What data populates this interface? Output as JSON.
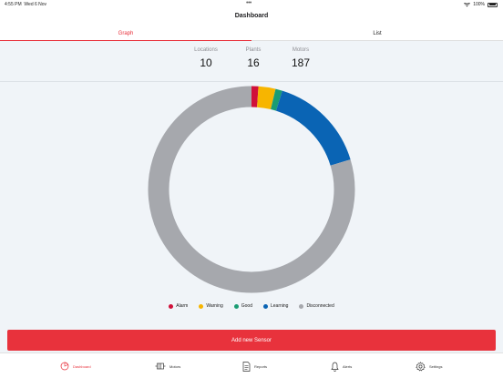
{
  "status_bar": {
    "time": "4:55 PM",
    "date": "Wed 6 Nov",
    "battery": "100%"
  },
  "nav": {
    "title": "Dashboard"
  },
  "tabs": [
    {
      "label": "Graph",
      "active": true
    },
    {
      "label": "List",
      "active": false
    }
  ],
  "stats": [
    {
      "label": "Locations",
      "value": "10"
    },
    {
      "label": "Plants",
      "value": "16"
    },
    {
      "label": "Motors",
      "value": "187"
    }
  ],
  "chart_data": {
    "type": "pie",
    "style": "donut",
    "total": 187,
    "categories": [
      "Alarm",
      "Warning",
      "Good",
      "Learning",
      "Disconnected"
    ],
    "values": [
      2,
      5,
      2,
      29,
      149
    ],
    "colors": [
      "#d0103a",
      "#f7b500",
      "#1a9c73",
      "#0a64b4",
      "#a6a8ad"
    ],
    "legend_position": "bottom"
  },
  "legend": [
    {
      "label": "Alarm",
      "color": "#d0103a"
    },
    {
      "label": "Warning",
      "color": "#f7b500"
    },
    {
      "label": "Good",
      "color": "#1a9c73"
    },
    {
      "label": "Learning",
      "color": "#0a64b4"
    },
    {
      "label": "Disconnected",
      "color": "#a6a8ad"
    }
  ],
  "add_sensor": {
    "label": "Add new Sensor"
  },
  "bottom_nav": [
    {
      "label": "Dashboard",
      "icon": "dashboard-icon",
      "active": true
    },
    {
      "label": "Motors",
      "icon": "motors-icon",
      "active": false
    },
    {
      "label": "Reports",
      "icon": "reports-icon",
      "active": false
    },
    {
      "label": "Alerts",
      "icon": "bell-icon",
      "active": false
    },
    {
      "label": "Settings",
      "icon": "gear-icon",
      "active": false
    }
  ],
  "colors": {
    "accent": "#e8323c",
    "background": "#f0f4f8"
  }
}
